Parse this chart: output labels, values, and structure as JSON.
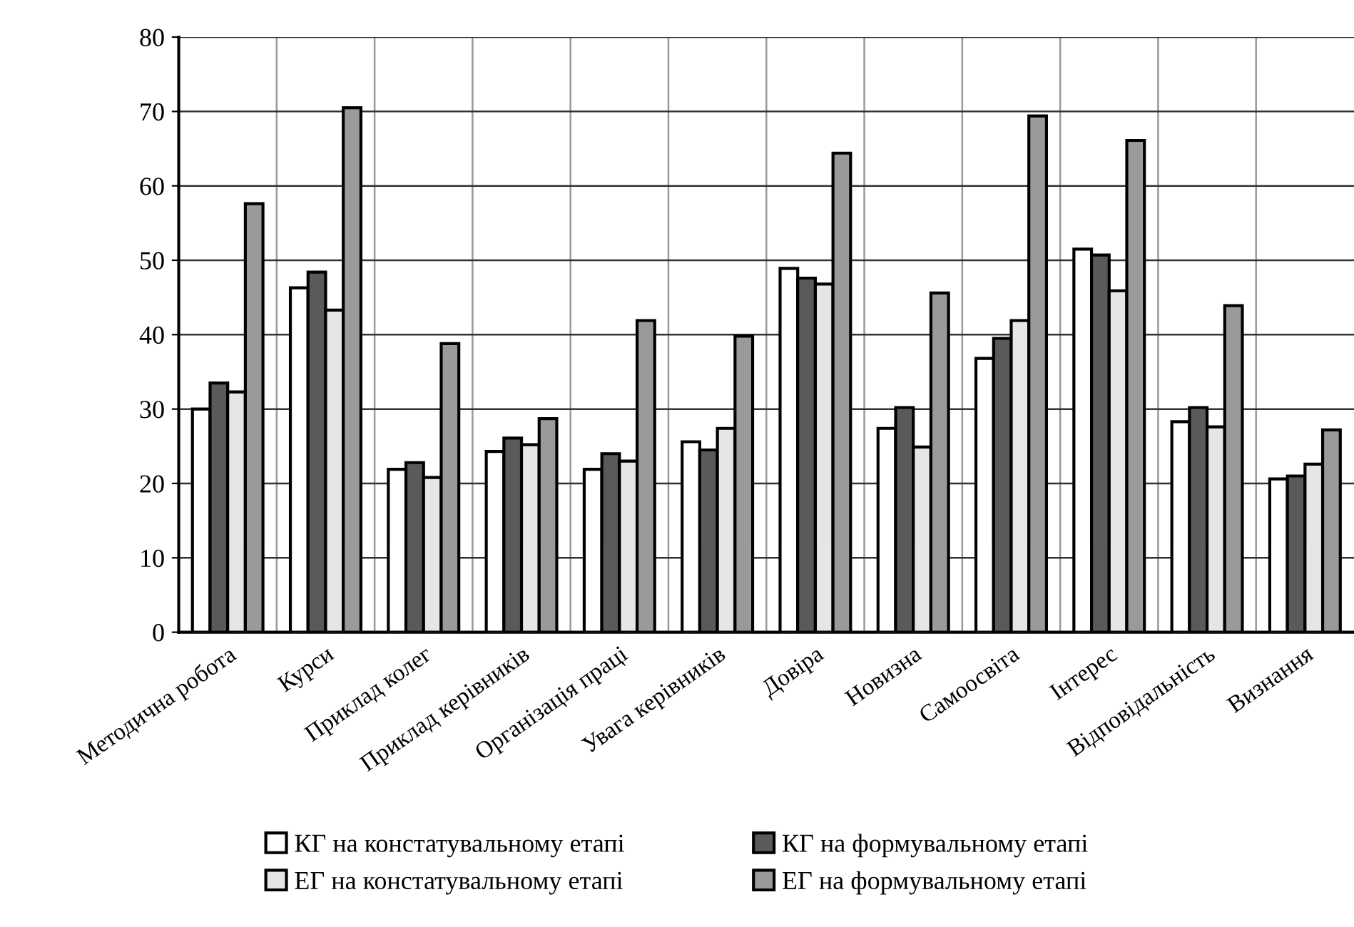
{
  "chart_data": {
    "type": "bar",
    "categories": [
      "Методична робота",
      "Курси",
      "Приклад колег",
      "Приклад керівників",
      "Організація праці",
      "Увага керівників",
      "Довіра",
      "Новизна",
      "Самоосвіта",
      "Інтерес",
      "Відповідальність",
      "Визнання"
    ],
    "series": [
      {
        "name": "КГ на констатувальному етапі",
        "color": "#ffffff",
        "values": [
          30,
          46.3,
          21.9,
          24.3,
          21.9,
          25.6,
          48.9,
          27.4,
          36.8,
          51.5,
          28.3,
          20.6
        ]
      },
      {
        "name": "КГ на формувальному етапі",
        "color": "#5a5a5a",
        "values": [
          33.5,
          48.4,
          22.8,
          26.1,
          24,
          24.5,
          47.6,
          30.2,
          39.5,
          50.7,
          30.2,
          21.0
        ]
      },
      {
        "name": "ЕГ на констатувальному етапі",
        "color": "#e6e6e6",
        "values": [
          32.3,
          43.3,
          20.8,
          25.2,
          23,
          27.4,
          46.8,
          24.9,
          41.9,
          45.9,
          27.6,
          22.6
        ]
      },
      {
        "name": "ЕГ на формувальному етапі",
        "color": "#9a9a9a",
        "values": [
          57.6,
          70.5,
          38.8,
          28.7,
          41.9,
          39.8,
          64.4,
          45.6,
          69.4,
          66.1,
          43.9,
          27.2
        ]
      }
    ],
    "ylim": [
      0,
      80
    ],
    "yticks": [
      0,
      10,
      20,
      30,
      40,
      50,
      60,
      70,
      80
    ],
    "grid": true,
    "legend": "bottom"
  }
}
